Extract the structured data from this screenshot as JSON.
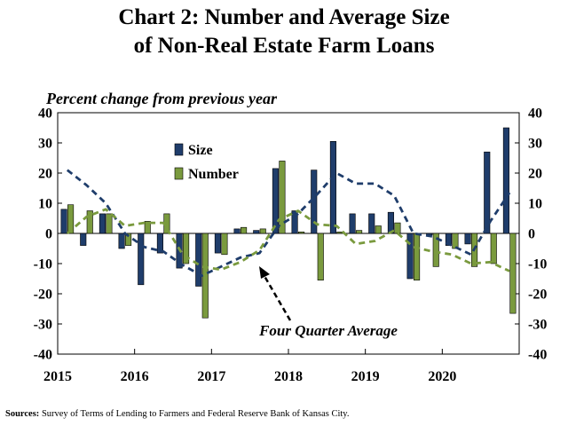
{
  "chart_data": {
    "type": "bar",
    "title": "Chart 2: Number and Average Size of Non-Real Estate Farm Loans",
    "title_line1": "Chart 2: Number and Average Size",
    "title_line2": "of Non-Real Estate Farm Loans",
    "ylabel": "Percent change from previous year",
    "ylim": [
      -40,
      40
    ],
    "yticks": [
      "40",
      "30",
      "20",
      "10",
      "0",
      "-10",
      "-20",
      "-30",
      "-40"
    ],
    "ytick_values": [
      40,
      30,
      20,
      10,
      0,
      -10,
      -20,
      -30,
      -40
    ],
    "year_labels": [
      "2015",
      "2016",
      "2017",
      "2018",
      "2019",
      "2020"
    ],
    "categories": [
      "2015Q1",
      "2015Q2",
      "2015Q3",
      "2015Q4",
      "2016Q1",
      "2016Q2",
      "2016Q3",
      "2016Q4",
      "2017Q1",
      "2017Q2",
      "2017Q3",
      "2017Q4",
      "2018Q1",
      "2018Q2",
      "2018Q3",
      "2018Q4",
      "2019Q1",
      "2019Q2",
      "2019Q3",
      "2019Q4",
      "2020Q1",
      "2020Q2",
      "2020Q3",
      "2020Q4"
    ],
    "series": [
      {
        "name": "Size",
        "color": "#1f3d6b",
        "values": [
          8,
          -4,
          6.5,
          -5,
          -17,
          -6.5,
          -11.5,
          -17.5,
          -6.5,
          1.5,
          1,
          21.5,
          7.5,
          21,
          30.5,
          6.5,
          6.5,
          7,
          -15,
          -0.5,
          -4,
          -3.5,
          27,
          35
        ]
      },
      {
        "name": "Number",
        "color": "#7a9a3e",
        "values": [
          9.5,
          7.5,
          6.5,
          -4,
          4,
          6.5,
          -10,
          -28,
          -7,
          2,
          1.5,
          24,
          0.5,
          -15.5,
          0.5,
          1,
          2.5,
          3.5,
          -15.5,
          -11,
          -5,
          -11,
          -10,
          -26.5
        ]
      }
    ],
    "average_lines": [
      {
        "name": "Size four quarter average",
        "color": "#1f3d6b",
        "values": [
          21,
          16,
          10,
          0,
          -4.5,
          -6,
          -10.5,
          -14,
          -11,
          -8,
          -6.5,
          2.5,
          6.5,
          13,
          20,
          16.5,
          16.5,
          12.5,
          0,
          -1,
          -4,
          -7,
          4,
          13.5
        ]
      },
      {
        "name": "Number four quarter average",
        "color": "#7a9a3e",
        "values": [
          0,
          5.5,
          8,
          2.5,
          3.5,
          3.5,
          -7,
          -11,
          -12,
          -9.5,
          -5.5,
          4.5,
          7.5,
          3,
          2.5,
          -3.5,
          -2.5,
          1,
          -4.5,
          -6,
          -7,
          -10,
          -9.5,
          -12.5
        ]
      }
    ],
    "legend": [
      "Size",
      "Number"
    ],
    "annotation": "Four Quarter Average",
    "grid": false
  },
  "source": {
    "label": "Sources:",
    "text": "Survey of Terms of Lending to Farmers and Federal Reserve Bank of Kansas City."
  }
}
